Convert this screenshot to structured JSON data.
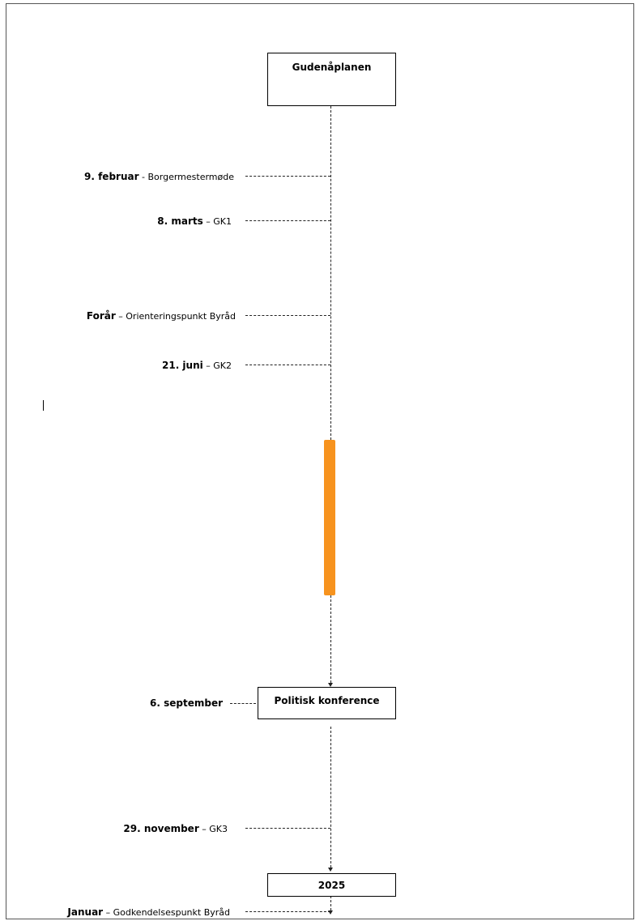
{
  "boxes": {
    "top": "Gudenåplanen",
    "conference": "Politisk konference",
    "year": "2025"
  },
  "events": [
    {
      "date": "9. februar",
      "sep": " - ",
      "text": "Borgermestermøde"
    },
    {
      "date": "8. marts",
      "sep": " – ",
      "text": "GK1"
    },
    {
      "date": "Forår",
      "sep": " – ",
      "text": "Orienteringspunkt Byråd"
    },
    {
      "date": "21. juni",
      "sep": " – ",
      "text": "GK2"
    },
    {
      "date": "6. september",
      "sep": "",
      "text": ""
    },
    {
      "date": "29. november",
      "sep": " – ",
      "text": "GK3"
    },
    {
      "date": "Januar",
      "sep": " – ",
      "text": "Godkendelsespunkt Byråd"
    }
  ],
  "colors": {
    "highlight_bar": "#f7931e"
  }
}
